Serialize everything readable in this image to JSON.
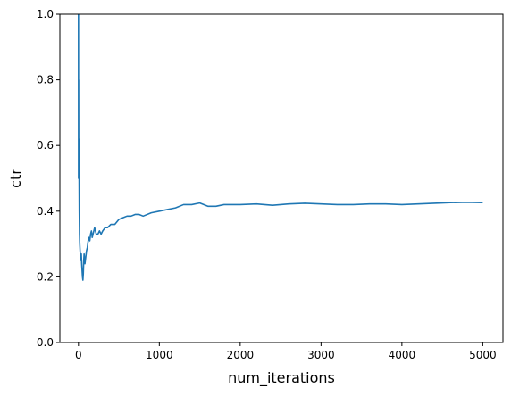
{
  "chart_data": {
    "type": "line",
    "title": "",
    "xlabel": "num_iterations",
    "ylabel": "ctr",
    "xlim": [
      -230,
      5250
    ],
    "ylim": [
      0,
      1
    ],
    "xticks": [
      0,
      1000,
      2000,
      3000,
      4000,
      5000
    ],
    "xtick_labels": [
      "0",
      "1000",
      "2000",
      "3000",
      "4000",
      "5000"
    ],
    "yticks": [
      0,
      0.2,
      0.4,
      0.6,
      0.8,
      1.0
    ],
    "ytick_labels": [
      "0.0",
      "0.2",
      "0.4",
      "0.6",
      "0.8",
      "1.0"
    ],
    "grid": false,
    "legend": false,
    "line_color": "#1f77b4",
    "series": [
      {
        "x": [
          0,
          1,
          2,
          3,
          4,
          5,
          7,
          10,
          13,
          16,
          20,
          25,
          30,
          35,
          40,
          45,
          50,
          55,
          60,
          65,
          70,
          80,
          90,
          100,
          110,
          120,
          130,
          140,
          150,
          160,
          170,
          180,
          190,
          200,
          220,
          240,
          260,
          280,
          300,
          330,
          360,
          400,
          450,
          500,
          550,
          600,
          650,
          700,
          750,
          800,
          900,
          1000,
          1100,
          1200,
          1300,
          1400,
          1500,
          1600,
          1700,
          1800,
          1900,
          2000,
          2200,
          2400,
          2600,
          2800,
          3000,
          3200,
          3400,
          3600,
          3800,
          4000,
          4200,
          4400,
          4600,
          4800,
          5000
        ],
        "values": [
          1.0,
          0.5,
          0.8,
          0.6,
          0.57,
          0.62,
          0.55,
          0.4,
          0.33,
          0.3,
          0.28,
          0.26,
          0.25,
          0.27,
          0.24,
          0.22,
          0.2,
          0.19,
          0.21,
          0.25,
          0.27,
          0.24,
          0.26,
          0.28,
          0.29,
          0.31,
          0.32,
          0.31,
          0.33,
          0.34,
          0.32,
          0.33,
          0.34,
          0.35,
          0.33,
          0.33,
          0.34,
          0.33,
          0.34,
          0.35,
          0.35,
          0.36,
          0.36,
          0.375,
          0.38,
          0.385,
          0.385,
          0.39,
          0.39,
          0.385,
          0.395,
          0.4,
          0.405,
          0.41,
          0.42,
          0.42,
          0.425,
          0.415,
          0.415,
          0.42,
          0.42,
          0.42,
          0.422,
          0.418,
          0.422,
          0.424,
          0.422,
          0.42,
          0.42,
          0.422,
          0.422,
          0.42,
          0.422,
          0.424,
          0.426,
          0.427,
          0.426
        ]
      }
    ]
  }
}
